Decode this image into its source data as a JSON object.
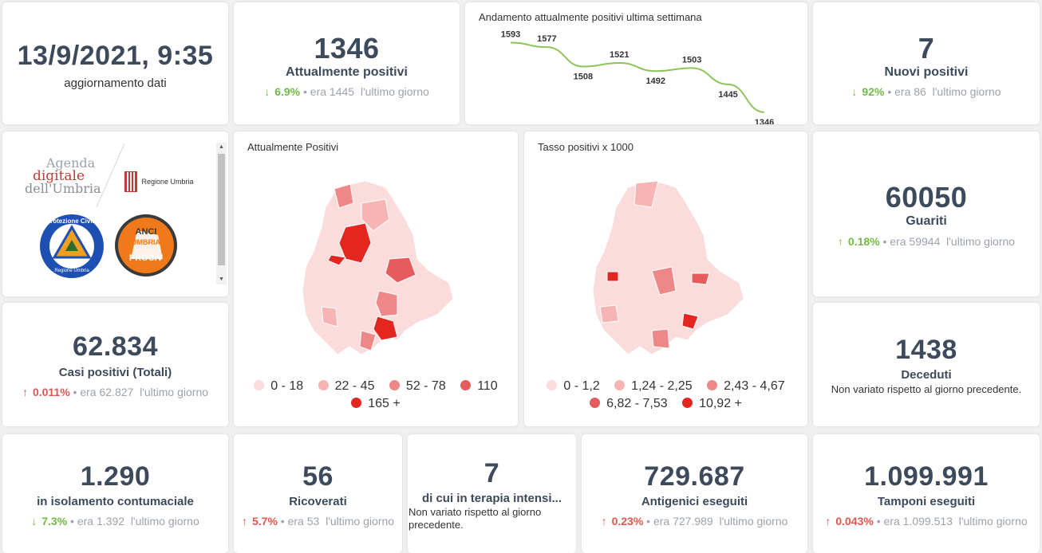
{
  "update": {
    "datetime": "13/9/2021, 9:35",
    "label": "aggiornamento dati"
  },
  "attualmente": {
    "value": "1346",
    "label": "Attualmente positivi",
    "pct": "6.9%",
    "prev": "era 1445",
    "suffix": "l'ultimo giorno",
    "trend": "down"
  },
  "trend_chart": {
    "title": "Andamento attualmente positivi ultima settimana",
    "chart_data": {
      "type": "line",
      "title": "Andamento attualmente positivi ultima settimana",
      "values": [
        1593,
        1577,
        1508,
        1521,
        1492,
        1503,
        1445,
        1346
      ],
      "labels": [
        "1593",
        "1577",
        "1508",
        "1521",
        "1492",
        "1503",
        "1445",
        "1346"
      ],
      "ylim": [
        1340,
        1600
      ],
      "color": "#8dc45c"
    }
  },
  "nuovi": {
    "value": "7",
    "label": "Nuovi positivi",
    "pct": "92%",
    "prev": "era 86",
    "suffix": "l'ultimo giorno",
    "trend": "down"
  },
  "logos": {
    "agenda_line1": "Agenda",
    "agenda_line2": "digitale",
    "agenda_line3": "dell'Umbria",
    "regione": "Regione Umbria",
    "protezione": "Protezione Civile",
    "protezione_sub": "Regione Umbria",
    "anci_top": "ANCI",
    "anci_mid": "UMBRIA",
    "anci_bottom": "PROCIV"
  },
  "map1": {
    "title": "Attualmente Positivi",
    "legend": [
      {
        "label": "0 - 18",
        "color": "#fbdcdc"
      },
      {
        "label": "22 - 45",
        "color": "#f6b4b4"
      },
      {
        "label": "52 - 78",
        "color": "#ee8888"
      },
      {
        "label": "110",
        "color": "#e65b5b"
      },
      {
        "label": "165 +",
        "color": "#e3261f"
      }
    ]
  },
  "map2": {
    "title": "Tasso positivi x 1000",
    "legend": [
      {
        "label": "0 - 1,2",
        "color": "#fbdcdc"
      },
      {
        "label": "1,24 - 2,25",
        "color": "#f6b4b4"
      },
      {
        "label": "2,43 - 4,67",
        "color": "#ee8888"
      },
      {
        "label": "6,82 - 7,53",
        "color": "#e65b5b"
      },
      {
        "label": "10,92 +",
        "color": "#e3261f"
      }
    ]
  },
  "guariti": {
    "value": "60050",
    "label": "Guariti",
    "pct": "0.18%",
    "prev": "era 59944",
    "suffix": "l'ultimo giorno",
    "trend": "up"
  },
  "casi": {
    "value": "62.834",
    "label": "Casi positivi (Totali)",
    "pct": "0.011%",
    "prev": "era 62.827",
    "suffix": "l'ultimo giorno",
    "trend": "up"
  },
  "deceduti": {
    "value": "1438",
    "label": "Deceduti",
    "note": "Non variato rispetto al giorno precedente."
  },
  "isolamento": {
    "value": "1.290",
    "label": "in isolamento contumaciale",
    "pct": "7.3%",
    "prev": "era 1.392",
    "suffix": "l'ultimo giorno",
    "trend": "down"
  },
  "ricoverati": {
    "value": "56",
    "label": "Ricoverati",
    "pct": "5.7%",
    "prev": "era 53",
    "suffix": "l'ultimo giorno",
    "trend": "up"
  },
  "terapia": {
    "value": "7",
    "label": "di cui in terapia intensi...",
    "note": "Non variato rispetto al giorno precedente."
  },
  "antigenici": {
    "value": "729.687",
    "label": "Antigenici eseguiti",
    "pct": "0.23%",
    "prev": "era 727.989",
    "suffix": "l'ultimo giorno",
    "trend": "up"
  },
  "tamponi": {
    "value": "1.099.991",
    "label": "Tamponi eseguiti",
    "pct": "0.043%",
    "prev": "era 1.099.513",
    "suffix": "l'ultimo giorno",
    "trend": "up"
  },
  "icons": {
    "down": "arrow-down-icon",
    "up": "arrow-up-icon",
    "scroll_up": "scroll-up-icon",
    "scroll_down": "scroll-down-icon"
  },
  "arrows": {
    "down": "↓",
    "up": "↑",
    "scroll_up": "▲",
    "scroll_down": "▼"
  }
}
